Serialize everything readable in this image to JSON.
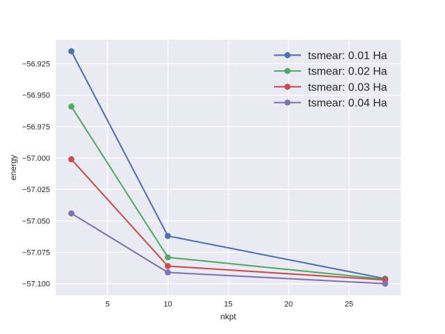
{
  "figure": {
    "background": "#FFFFFF"
  },
  "chart_data": {
    "type": "line",
    "title": "",
    "xlabel": "nkpt",
    "ylabel": "energy",
    "x": [
      2,
      10,
      28
    ],
    "series": [
      {
        "name": "tsmear: 0.01 Ha",
        "color": "#4C72B0",
        "values": [
          -56.915,
          -57.062,
          -57.096
        ]
      },
      {
        "name": "tsmear: 0.02 Ha",
        "color": "#55A868",
        "values": [
          -56.959,
          -57.079,
          -57.0965
        ]
      },
      {
        "name": "tsmear: 0.03 Ha",
        "color": "#C44E52",
        "values": [
          -57.001,
          -57.086,
          -57.097
        ]
      },
      {
        "name": "tsmear: 0.04 Ha",
        "color": "#8172B2",
        "values": [
          -57.044,
          -57.091,
          -57.1
        ]
      }
    ],
    "xticks": [
      5,
      10,
      15,
      20,
      25
    ],
    "xtick_labels": [
      "5",
      "10",
      "15",
      "20",
      "25"
    ],
    "yticks": [
      -56.925,
      -56.95,
      -56.975,
      -57.0,
      -57.025,
      -57.05,
      -57.075,
      -57.1
    ],
    "ytick_labels": [
      "−56.925",
      "−56.950",
      "−56.975",
      "−57.000",
      "−57.025",
      "−57.050",
      "−57.075",
      "−57.100"
    ],
    "xlim": [
      0.7,
      29.3
    ],
    "ylim": [
      -57.1093,
      -56.9058
    ],
    "grid": true,
    "legend": {
      "position": "upper right",
      "entries": [
        "tsmear: 0.01 Ha",
        "tsmear: 0.02 Ha",
        "tsmear: 0.03 Ha",
        "tsmear: 0.04 Ha"
      ]
    },
    "plot_background": "#EAEAF2",
    "grid_color": "#FFFFFF",
    "text_color": "#262626",
    "marker": "circle"
  }
}
